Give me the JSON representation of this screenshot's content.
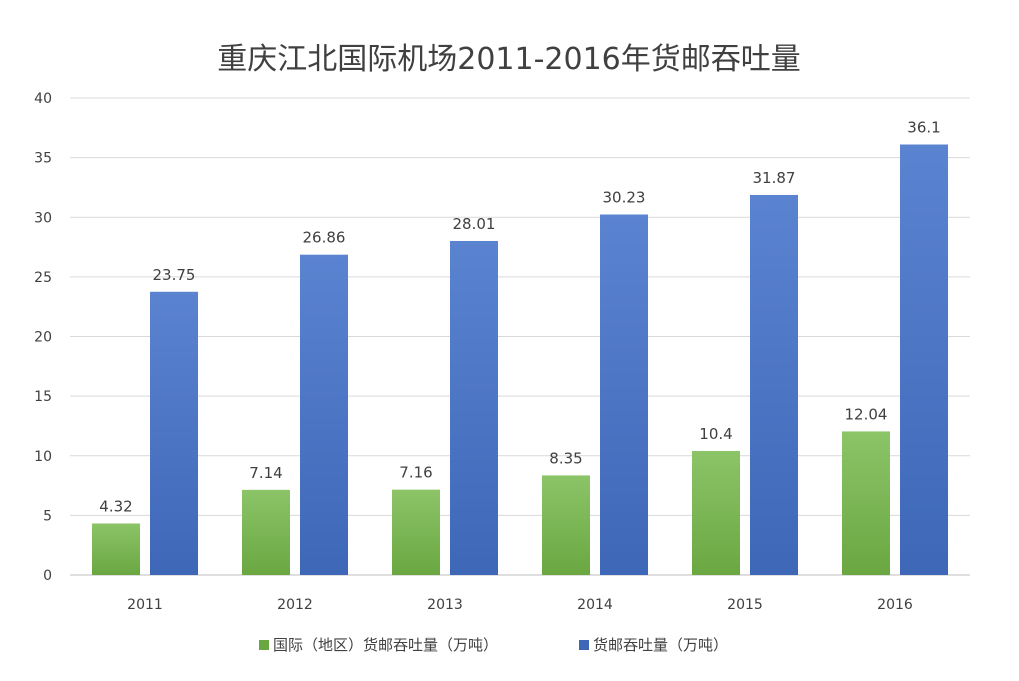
{
  "chart_data": {
    "type": "bar",
    "title": "重庆江北国际机场2011-2016年货邮吞吐量",
    "categories": [
      "2011",
      "2012",
      "2013",
      "2014",
      "2015",
      "2016"
    ],
    "series": [
      {
        "name": "国际（地区）货邮吞吐量（万吨）",
        "values": [
          4.32,
          7.14,
          7.16,
          8.35,
          10.4,
          12.04
        ],
        "labels": [
          "4.32",
          "7.14",
          "7.16",
          "8.35",
          "10.4",
          "12.04"
        ],
        "color": "#6aa741",
        "color_light": "#8cc468"
      },
      {
        "name": "货邮吞吐量（万吨）",
        "values": [
          23.75,
          26.86,
          28.01,
          30.23,
          31.87,
          36.1
        ],
        "labels": [
          "23.75",
          "26.86",
          "28.01",
          "30.23",
          "31.87",
          "36.1"
        ],
        "color": "#3e67b8",
        "color_light": "#5a83d0"
      }
    ],
    "ylim": [
      0,
      40
    ],
    "yticks": [
      "0",
      "5",
      "10",
      "15",
      "20",
      "25",
      "30",
      "35",
      "40"
    ],
    "ytick_values": [
      0,
      5,
      10,
      15,
      20,
      25,
      30,
      35,
      40
    ],
    "grid": true,
    "legend_position": "bottom"
  }
}
